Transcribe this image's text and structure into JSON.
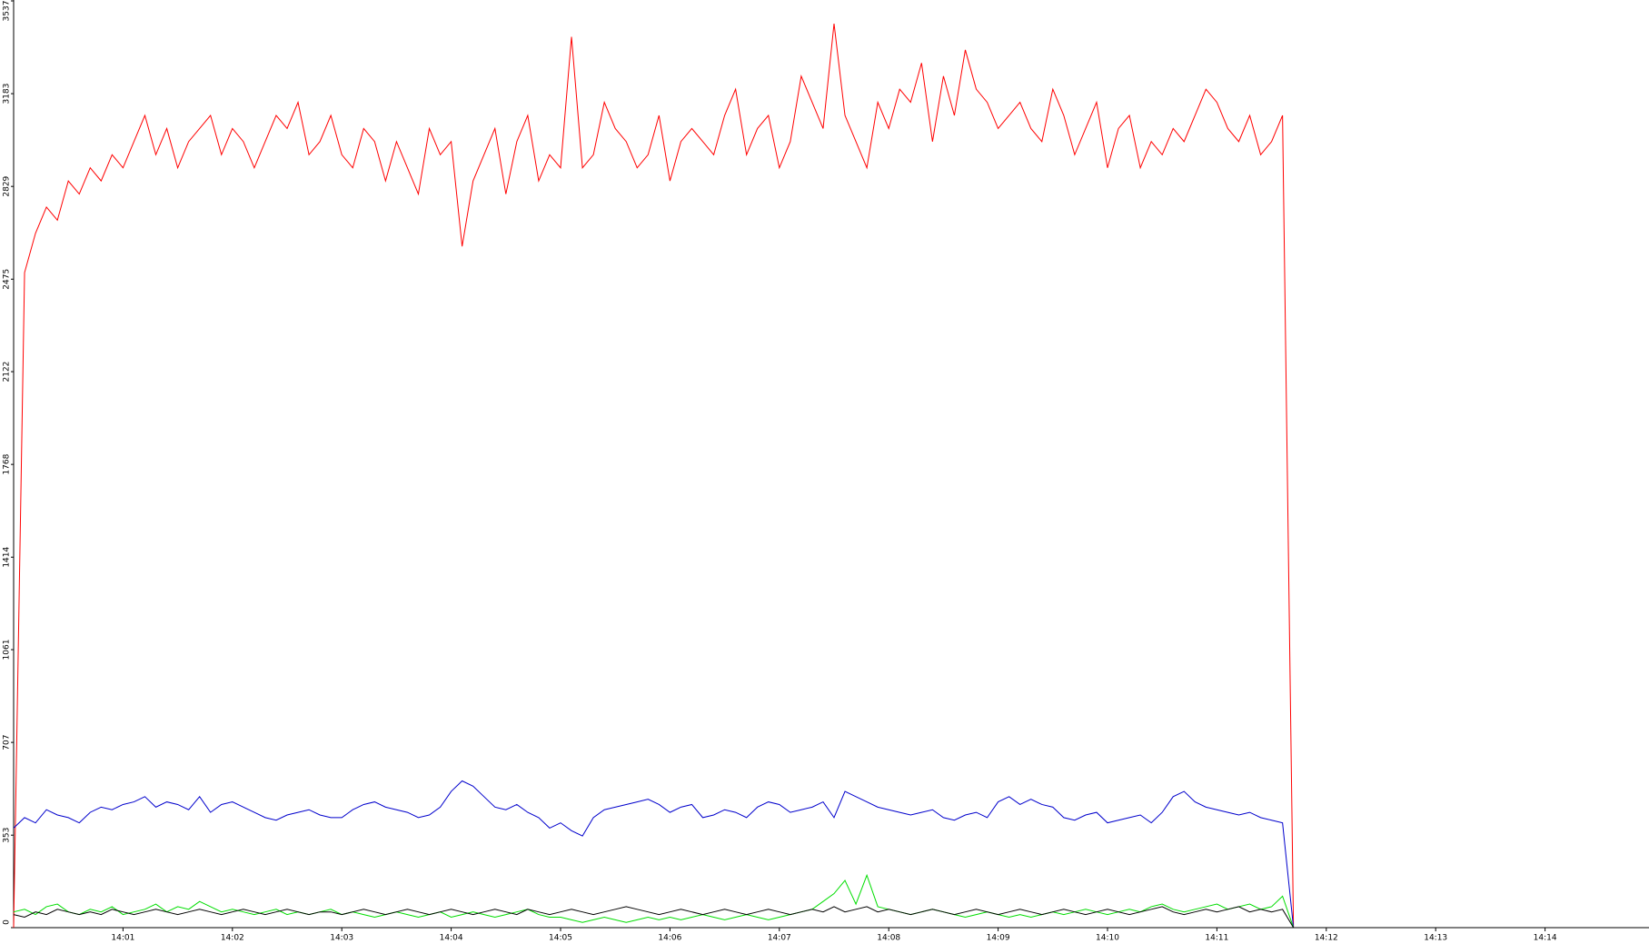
{
  "chart_data": {
    "type": "line",
    "categories": [
      null,
      null,
      null,
      null,
      null,
      null,
      null,
      null,
      null,
      null,
      "14:01",
      null,
      null,
      null,
      null,
      null,
      null,
      null,
      null,
      null,
      "14:02",
      null,
      null,
      null,
      null,
      null,
      null,
      null,
      null,
      null,
      "14:03",
      null,
      null,
      null,
      null,
      null,
      null,
      null,
      null,
      null,
      "14:04",
      null,
      null,
      null,
      null,
      null,
      null,
      null,
      null,
      null,
      "14:05",
      null,
      null,
      null,
      null,
      null,
      null,
      null,
      null,
      null,
      "14:06",
      null,
      null,
      null,
      null,
      null,
      null,
      null,
      null,
      null,
      "14:07",
      null,
      null,
      null,
      null,
      null,
      null,
      null,
      null,
      null,
      "14:08",
      null,
      null,
      null,
      null,
      null,
      null,
      null,
      null,
      null,
      "14:09",
      null,
      null,
      null,
      null,
      null,
      null,
      null,
      null,
      null,
      "14:10",
      null,
      null,
      null,
      null,
      null,
      null,
      null,
      null,
      null,
      "14:11",
      null,
      null,
      null,
      null,
      null,
      null,
      null,
      null,
      null,
      "14:12",
      null,
      null,
      null,
      null,
      null,
      null,
      null,
      null,
      null,
      "14:13",
      null,
      null,
      null,
      null,
      null,
      null,
      null,
      null,
      null,
      "14:14",
      null,
      null,
      null,
      null,
      null,
      null,
      null,
      null,
      null
    ],
    "ylim": [
      0,
      3537
    ],
    "yticks": [
      0,
      353,
      707,
      1061,
      1414,
      1768,
      2122,
      2475,
      2829,
      3183,
      3537
    ],
    "series": [
      {
        "color": "#ff0000",
        "values": [
          0,
          2500,
          2650,
          2750,
          2700,
          2850,
          2800,
          2900,
          2850,
          2950,
          2900,
          3000,
          3100,
          2950,
          3050,
          2900,
          3000,
          3050,
          3100,
          2950,
          3050,
          3000,
          2900,
          3000,
          3100,
          3050,
          3150,
          2950,
          3000,
          3100,
          2950,
          2900,
          3050,
          3000,
          2850,
          3000,
          2900,
          2800,
          3050,
          2950,
          3000,
          2600,
          2850,
          2950,
          3050,
          2800,
          3000,
          3100,
          2850,
          2950,
          2900,
          3400,
          2900,
          2950,
          3150,
          3050,
          3000,
          2900,
          2950,
          3100,
          2850,
          3000,
          3050,
          3000,
          2950,
          3100,
          3200,
          2950,
          3050,
          3100,
          2900,
          3000,
          3250,
          3150,
          3050,
          3450,
          3100,
          3000,
          2900,
          3150,
          3050,
          3200,
          3150,
          3300,
          3000,
          3250,
          3100,
          3350,
          3200,
          3150,
          3050,
          3100,
          3150,
          3050,
          3000,
          3200,
          3100,
          2950,
          3050,
          3150,
          2900,
          3050,
          3100,
          2900,
          3000,
          2950,
          3050,
          3000,
          3100,
          3200,
          3150,
          3050,
          3000,
          3100,
          2950,
          3000,
          3100,
          0,
          null,
          null,
          null,
          null,
          null,
          null,
          null,
          null,
          null,
          null,
          null,
          null,
          null,
          null,
          null,
          null,
          null,
          null,
          null,
          null,
          null,
          null,
          null,
          null,
          null,
          null,
          null,
          null,
          null,
          null,
          null,
          null
        ]
      },
      {
        "color": "#0000cc",
        "values": [
          380,
          420,
          400,
          450,
          430,
          420,
          400,
          440,
          460,
          450,
          470,
          480,
          500,
          460,
          480,
          470,
          450,
          500,
          440,
          470,
          480,
          460,
          440,
          420,
          410,
          430,
          440,
          450,
          430,
          420,
          420,
          450,
          470,
          480,
          460,
          450,
          440,
          420,
          430,
          460,
          520,
          560,
          540,
          500,
          460,
          450,
          470,
          440,
          420,
          380,
          400,
          370,
          350,
          420,
          450,
          460,
          470,
          480,
          490,
          470,
          440,
          460,
          470,
          420,
          430,
          450,
          440,
          420,
          460,
          480,
          470,
          440,
          450,
          460,
          480,
          420,
          520,
          500,
          480,
          460,
          450,
          440,
          430,
          440,
          450,
          420,
          410,
          430,
          440,
          420,
          480,
          500,
          470,
          490,
          470,
          460,
          420,
          410,
          430,
          440,
          400,
          410,
          420,
          430,
          400,
          440,
          500,
          520,
          480,
          460,
          450,
          440,
          430,
          440,
          420,
          410,
          400,
          0,
          null,
          null,
          null,
          null,
          null,
          null,
          null,
          null,
          null,
          null,
          null,
          null,
          null,
          null,
          null,
          null,
          null,
          null,
          null,
          null,
          null,
          null,
          null,
          null,
          null,
          null,
          null,
          null,
          null,
          null,
          null,
          null
        ]
      },
      {
        "color": "#00dd00",
        "values": [
          60,
          70,
          50,
          80,
          90,
          60,
          50,
          70,
          60,
          80,
          50,
          60,
          70,
          90,
          60,
          80,
          70,
          100,
          80,
          60,
          70,
          60,
          50,
          60,
          70,
          50,
          60,
          50,
          60,
          70,
          50,
          60,
          50,
          40,
          50,
          60,
          50,
          40,
          50,
          60,
          40,
          50,
          60,
          50,
          40,
          50,
          60,
          70,
          50,
          40,
          40,
          30,
          20,
          30,
          40,
          30,
          20,
          30,
          40,
          30,
          40,
          30,
          40,
          50,
          40,
          30,
          40,
          50,
          40,
          30,
          40,
          50,
          60,
          70,
          100,
          130,
          180,
          90,
          200,
          80,
          70,
          60,
          50,
          60,
          70,
          60,
          50,
          40,
          50,
          60,
          50,
          40,
          50,
          40,
          50,
          60,
          50,
          60,
          70,
          60,
          50,
          60,
          70,
          60,
          80,
          90,
          70,
          60,
          70,
          80,
          90,
          70,
          80,
          90,
          70,
          80,
          120,
          0,
          null,
          null,
          null,
          null,
          null,
          null,
          null,
          null,
          null,
          null,
          null,
          null,
          null,
          null,
          null,
          null,
          null,
          null,
          null,
          null,
          null,
          null,
          null,
          null,
          null,
          null,
          null,
          null,
          null,
          null,
          null,
          null
        ]
      },
      {
        "color": "#000000",
        "values": [
          50,
          40,
          60,
          50,
          70,
          60,
          50,
          60,
          50,
          70,
          60,
          50,
          60,
          70,
          60,
          50,
          60,
          70,
          60,
          50,
          60,
          70,
          60,
          50,
          60,
          70,
          60,
          50,
          60,
          60,
          50,
          60,
          70,
          60,
          50,
          60,
          70,
          60,
          50,
          60,
          70,
          60,
          50,
          60,
          70,
          60,
          50,
          70,
          60,
          50,
          60,
          70,
          60,
          50,
          60,
          70,
          80,
          70,
          60,
          50,
          60,
          70,
          60,
          50,
          60,
          70,
          60,
          50,
          60,
          70,
          60,
          50,
          60,
          70,
          60,
          80,
          60,
          70,
          80,
          60,
          70,
          60,
          50,
          60,
          70,
          60,
          50,
          60,
          70,
          60,
          50,
          60,
          70,
          60,
          50,
          60,
          70,
          60,
          50,
          60,
          70,
          60,
          50,
          60,
          70,
          80,
          60,
          50,
          60,
          70,
          60,
          70,
          80,
          60,
          70,
          60,
          70,
          0,
          null,
          null,
          null,
          null,
          null,
          null,
          null,
          null,
          null,
          null,
          null,
          null,
          null,
          null,
          null,
          null,
          null,
          null,
          null,
          null,
          null,
          null,
          null,
          null,
          null,
          null,
          null,
          null,
          null,
          null,
          null,
          null
        ]
      }
    ]
  }
}
